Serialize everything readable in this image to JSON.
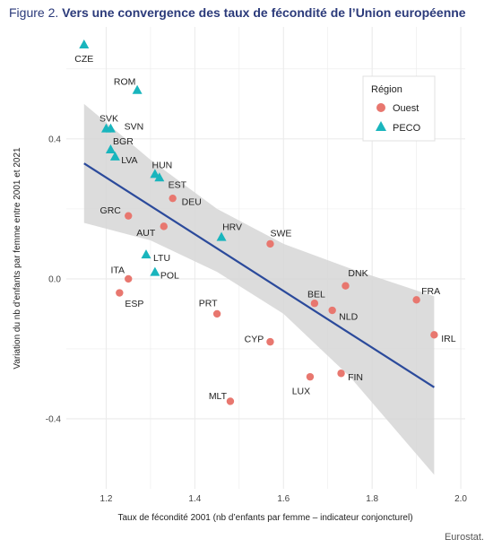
{
  "figure_label": "Figure 2.",
  "figure_title": "Vers une convergence des taux de fécondité de l’Union européenne",
  "source": "Eurostat.",
  "colors": {
    "title": "#2b3a7a",
    "ouest": "#e8776f",
    "peco": "#19b5bd",
    "trend": "#2b4a9b",
    "band": "#d6d6d6",
    "grid": "#ebebeb"
  },
  "chart_data": {
    "type": "scatter",
    "xlabel": "Taux de fécondité 2001 (nb d’enfants par femme – indicateur conjoncturel)",
    "ylabel": "Variation du nb d’enfants par femme entre 2001 et 2021",
    "xlim": [
      1.11,
      2.01
    ],
    "ylim": [
      -0.6,
      0.72
    ],
    "x_ticks": [
      "1.2",
      "1.4",
      "1.6",
      "1.8",
      "2.0"
    ],
    "y_ticks": [
      "-0.4",
      "0.0",
      "0.4"
    ],
    "grid": true,
    "legend": {
      "title": "Région",
      "position": "top-right",
      "entries": [
        {
          "name": "Ouest",
          "shape": "circle"
        },
        {
          "name": "PECO",
          "shape": "triangle"
        }
      ]
    },
    "series": [
      {
        "name": "Ouest",
        "shape": "circle",
        "points": [
          {
            "label": "GRC",
            "x": 1.25,
            "y": 0.18
          },
          {
            "label": "DEU",
            "x": 1.35,
            "y": 0.23
          },
          {
            "label": "AUT",
            "x": 1.33,
            "y": 0.15
          },
          {
            "label": "ITA",
            "x": 1.25,
            "y": 0.0
          },
          {
            "label": "ESP",
            "x": 1.23,
            "y": -0.04
          },
          {
            "label": "SWE",
            "x": 1.57,
            "y": 0.1
          },
          {
            "label": "PRT",
            "x": 1.45,
            "y": -0.1
          },
          {
            "label": "CYP",
            "x": 1.57,
            "y": -0.18
          },
          {
            "label": "MLT",
            "x": 1.48,
            "y": -0.35
          },
          {
            "label": "LUX",
            "x": 1.66,
            "y": -0.28
          },
          {
            "label": "FIN",
            "x": 1.73,
            "y": -0.27
          },
          {
            "label": "BEL",
            "x": 1.67,
            "y": -0.07
          },
          {
            "label": "NLD",
            "x": 1.71,
            "y": -0.09
          },
          {
            "label": "DNK",
            "x": 1.74,
            "y": -0.02
          },
          {
            "label": "FRA",
            "x": 1.9,
            "y": -0.06
          },
          {
            "label": "IRL",
            "x": 1.94,
            "y": -0.16
          }
        ]
      },
      {
        "name": "PECO",
        "shape": "triangle",
        "points": [
          {
            "label": "CZE",
            "x": 1.15,
            "y": 0.67
          },
          {
            "label": "ROM",
            "x": 1.27,
            "y": 0.54
          },
          {
            "label": "SVK",
            "x": 1.2,
            "y": 0.43
          },
          {
            "label": "SVN",
            "x": 1.21,
            "y": 0.43
          },
          {
            "label": "BGR",
            "x": 1.21,
            "y": 0.37
          },
          {
            "label": "LVA",
            "x": 1.22,
            "y": 0.35
          },
          {
            "label": "HUN",
            "x": 1.31,
            "y": 0.3
          },
          {
            "label": "EST",
            "x": 1.32,
            "y": 0.29
          },
          {
            "label": "HRV",
            "x": 1.46,
            "y": 0.12
          },
          {
            "label": "LTU",
            "x": 1.29,
            "y": 0.07
          },
          {
            "label": "POL",
            "x": 1.31,
            "y": 0.02
          }
        ]
      }
    ],
    "trend_line": {
      "x": [
        1.15,
        1.94
      ],
      "y": [
        0.33,
        -0.31
      ]
    },
    "confidence_band": {
      "x": [
        1.15,
        1.3,
        1.45,
        1.6,
        1.75,
        1.94
      ],
      "upper": [
        0.5,
        0.34,
        0.2,
        0.1,
        0.03,
        -0.05
      ],
      "lower": [
        0.16,
        0.11,
        0.02,
        -0.1,
        -0.28,
        -0.56
      ]
    }
  }
}
